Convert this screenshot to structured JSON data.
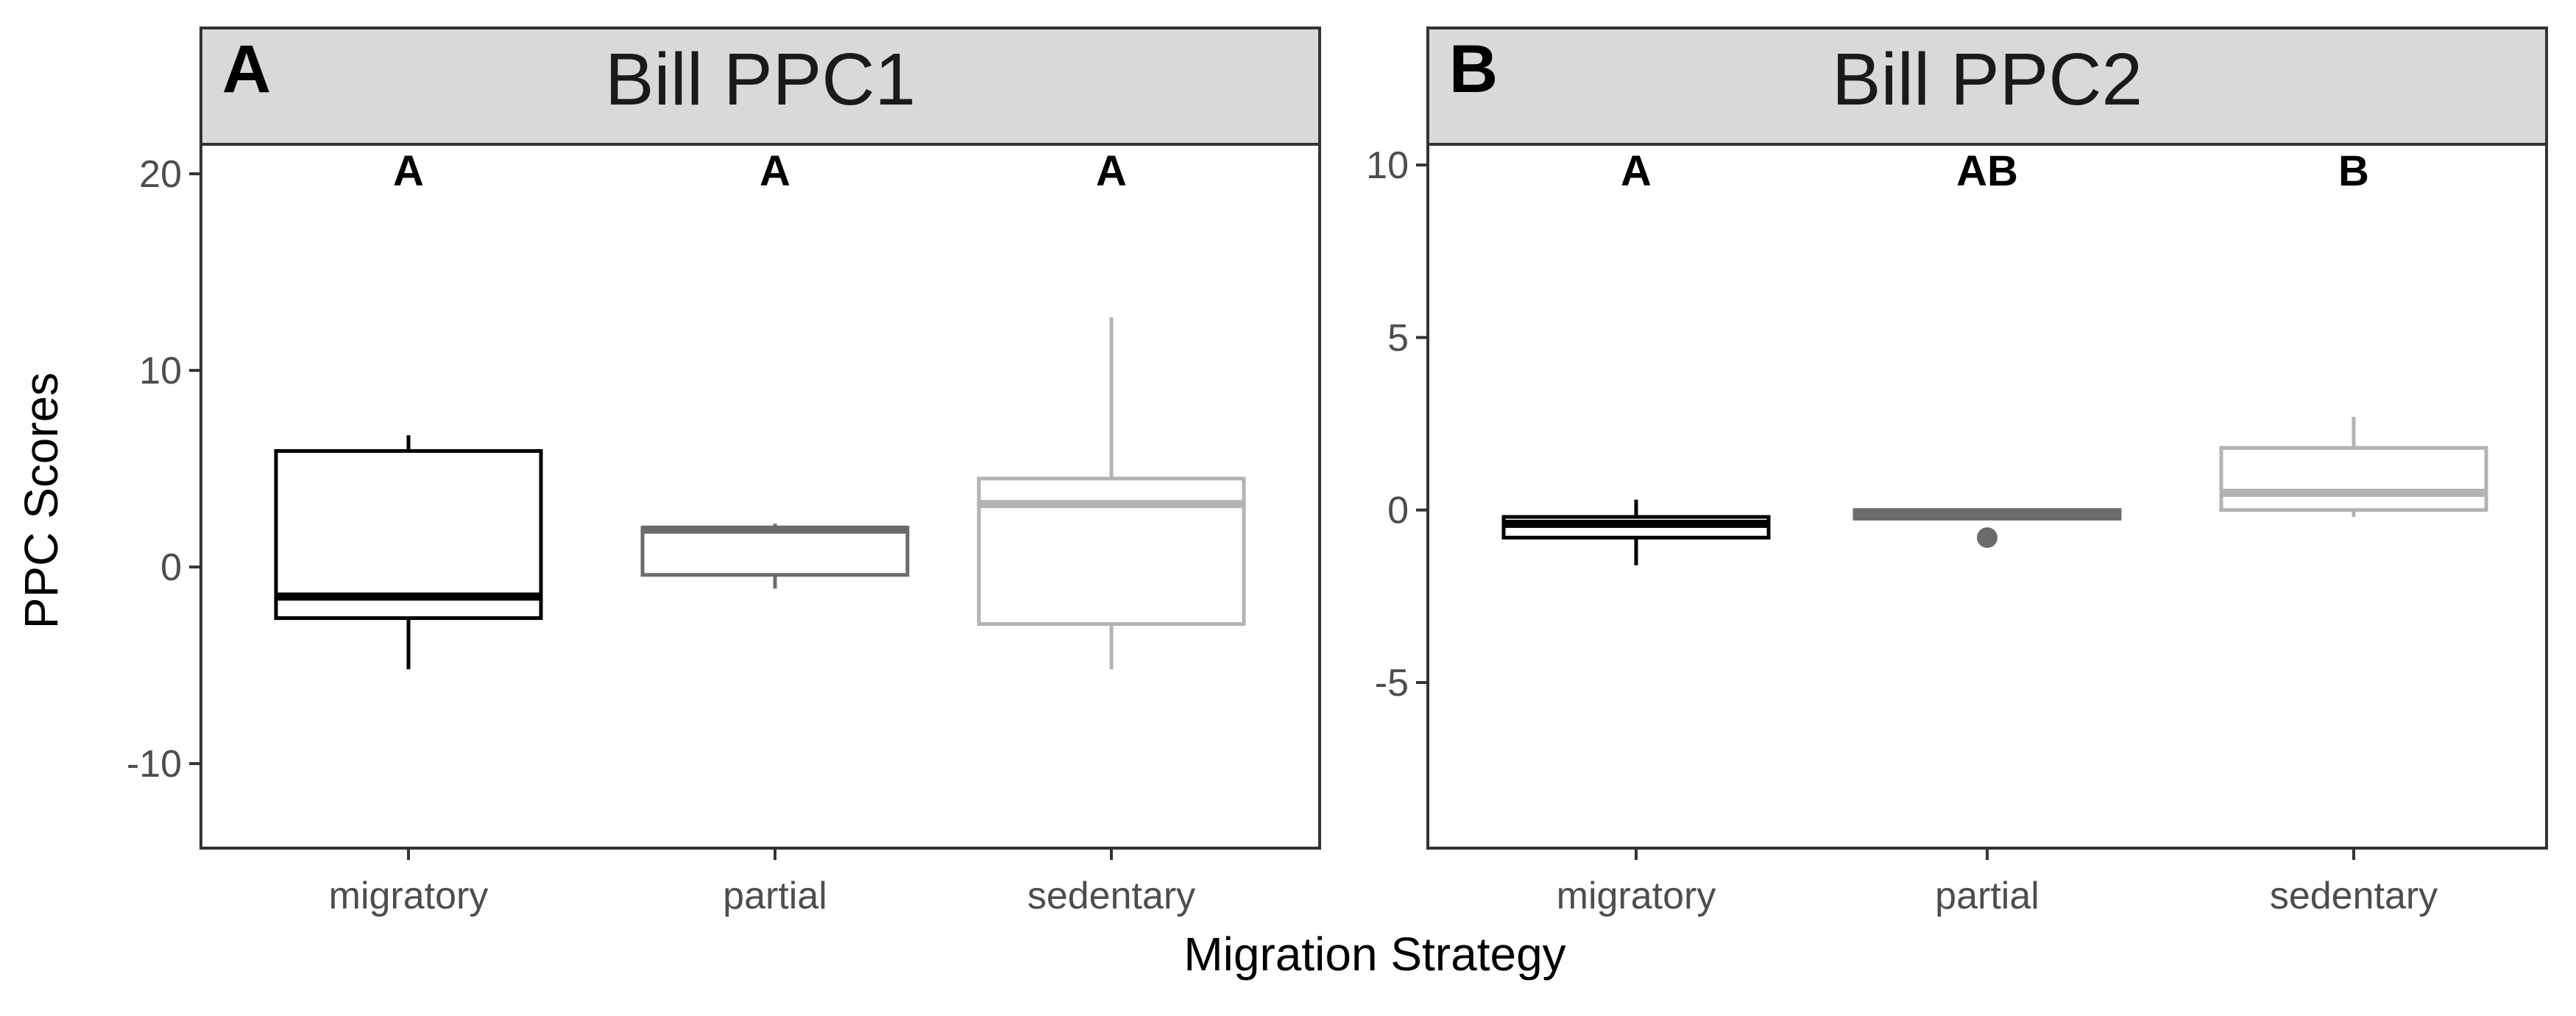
{
  "figure": {
    "ylabel": "PPC Scores",
    "xlabel": "Migration Strategy"
  },
  "colors": {
    "migratory": "#000000",
    "partial": "#6b6b6b",
    "sedentary": "#b3b3b3",
    "strip_fill": "#d9d9d9",
    "axis": "#333333",
    "tick_label": "#4d4d4d"
  },
  "chart_data": [
    {
      "type": "box",
      "panel_letter": "A",
      "title": "Bill PPC1",
      "categories": [
        "migratory",
        "partial",
        "sedentary"
      ],
      "ylim": [
        -14.3,
        21.5
      ],
      "yticks": [
        -10,
        0,
        10,
        20
      ],
      "ytick_labels": [
        "-10",
        "0",
        "10",
        "20"
      ],
      "grid": false,
      "boxes": [
        {
          "category": "migratory",
          "whisker_low": -5.2,
          "q1": -2.6,
          "median": -1.5,
          "q3": 5.9,
          "whisker_high": 6.7,
          "outliers": []
        },
        {
          "category": "partial",
          "whisker_low": -1.1,
          "q1": -0.4,
          "median": 1.9,
          "q3": 2.0,
          "whisker_high": 2.2,
          "outliers": []
        },
        {
          "category": "sedentary",
          "whisker_low": -5.2,
          "q1": -2.9,
          "median": 3.2,
          "q3": 4.5,
          "whisker_high": 12.7,
          "outliers": []
        }
      ],
      "significance_letters": [
        "A",
        "A",
        "A"
      ]
    },
    {
      "type": "box",
      "panel_letter": "B",
      "title": "Bill PPC2",
      "categories": [
        "migratory",
        "partial",
        "sedentary"
      ],
      "ylim": [
        -9.8,
        10.6
      ],
      "yticks": [
        -5,
        0,
        5,
        10
      ],
      "ytick_labels": [
        "-5",
        "0",
        "5",
        "10"
      ],
      "grid": false,
      "boxes": [
        {
          "category": "migratory",
          "whisker_low": -1.6,
          "q1": -0.8,
          "median": -0.4,
          "q3": -0.2,
          "whisker_high": 0.3,
          "outliers": []
        },
        {
          "category": "partial",
          "whisker_low": -0.25,
          "q1": -0.25,
          "median": -0.1,
          "q3": 0.0,
          "whisker_high": 0.0,
          "outliers": [
            -0.8
          ]
        },
        {
          "category": "sedentary",
          "whisker_low": -0.2,
          "q1": 0.0,
          "median": 0.5,
          "q3": 1.8,
          "whisker_high": 2.7,
          "outliers": []
        }
      ],
      "significance_letters": [
        "A",
        "AB",
        "B"
      ]
    }
  ]
}
